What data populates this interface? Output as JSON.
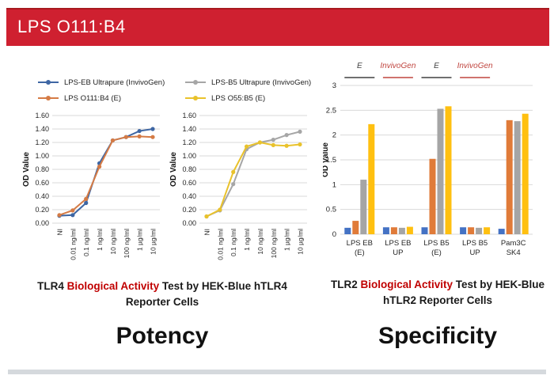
{
  "header": {
    "title": "LPS O111:B4",
    "bg_color": "#CF2030"
  },
  "sections": {
    "potency": {
      "label": "Potency",
      "caption": {
        "prefix": "TLR4 ",
        "highlight": "Biological Activity",
        "suffix": " Test by HEK-Blue hTLR4 Reporter Cells"
      }
    },
    "specificity": {
      "label": "Specificity",
      "caption": {
        "prefix": "TLR2 ",
        "highlight": "Biological Activity",
        "suffix": " Test by HEK-Blue hTLR2 Reporter Cells"
      }
    }
  },
  "chart_data": [
    {
      "type": "line",
      "title": "",
      "categories": [
        "NI",
        "0.01 ng/ml",
        "0.1 ng/ml",
        "1 ng/ml",
        "10 ng/ml",
        "100 ng/ml",
        "1 µg/ml",
        "10 µg/ml"
      ],
      "series": [
        {
          "name": "LPS-EB Ultrapure (InvivoGen)",
          "color": "#3E66A3",
          "values": [
            0.11,
            0.12,
            0.3,
            0.89,
            1.23,
            1.28,
            1.37,
            1.4
          ]
        },
        {
          "name": "LPS O111:B4 (E)",
          "color": "#D57B45",
          "values": [
            0.12,
            0.19,
            0.36,
            0.84,
            1.23,
            1.28,
            1.29,
            1.28
          ]
        }
      ],
      "xlabel": "",
      "ylabel": "OD Value",
      "ylim": [
        0,
        1.6
      ],
      "ytick_step": 0.2,
      "grid": "horizontal",
      "legend_position": "top"
    },
    {
      "type": "line",
      "title": "",
      "categories": [
        "NI",
        "0.01 ng/ml",
        "0.1 ng/ml",
        "1 ng/ml",
        "10 ng/ml",
        "100 ng/ml",
        "1 µg/ml",
        "10 µg/ml"
      ],
      "series": [
        {
          "name": "LPS-B5 Ultrapure (InvivoGen)",
          "color": "#A6A6A6",
          "values": [
            0.1,
            0.19,
            0.58,
            1.1,
            1.2,
            1.24,
            1.31,
            1.36
          ]
        },
        {
          "name": "LPS O55:B5 (E)",
          "color": "#E9C22B",
          "values": [
            0.1,
            0.2,
            0.76,
            1.14,
            1.2,
            1.16,
            1.15,
            1.17
          ]
        }
      ],
      "xlabel": "",
      "ylabel": "OD Value",
      "ylim": [
        0,
        1.6
      ],
      "ytick_step": 0.2,
      "grid": "horizontal",
      "legend_position": "top"
    },
    {
      "type": "bar",
      "title": "",
      "categories": [
        "LPS EB (E)",
        "LPS EB UP",
        "LPS B5 (E)",
        "LPS B5 UP",
        "Pam3C SK4"
      ],
      "category_lines": [
        [
          "LPS EB",
          "(E)"
        ],
        [
          "LPS EB",
          "UP"
        ],
        [
          "LPS B5",
          "(E)"
        ],
        [
          "LPS B5",
          "UP"
        ],
        [
          "Pam3C",
          "SK4"
        ]
      ],
      "series": [
        {
          "name": "blue",
          "color": "#4472C4",
          "values": [
            0.13,
            0.14,
            0.14,
            0.14,
            0.11
          ]
        },
        {
          "name": "orange",
          "color": "#E07B39",
          "values": [
            0.27,
            0.14,
            1.52,
            0.14,
            2.3
          ]
        },
        {
          "name": "gray",
          "color": "#A5A5A5",
          "values": [
            1.1,
            0.13,
            2.53,
            0.13,
            2.28
          ]
        },
        {
          "name": "yellow",
          "color": "#FFC010",
          "values": [
            2.22,
            0.15,
            2.58,
            0.14,
            2.43
          ]
        }
      ],
      "annotations": [
        {
          "text": "E",
          "color": "#404040",
          "group": 0
        },
        {
          "text": "InvivoGen",
          "color": "#C0453F",
          "group": 1
        },
        {
          "text": "E",
          "color": "#404040",
          "group": 2
        },
        {
          "text": "InvivoGen",
          "color": "#C0453F",
          "group": 3
        }
      ],
      "xlabel": "",
      "ylabel": "OD Value",
      "ylim": [
        0,
        3
      ],
      "yticks": [
        0,
        0.5,
        1,
        1.5,
        2,
        2.5,
        3
      ],
      "grid": "horizontal",
      "legend_position": "none"
    }
  ]
}
